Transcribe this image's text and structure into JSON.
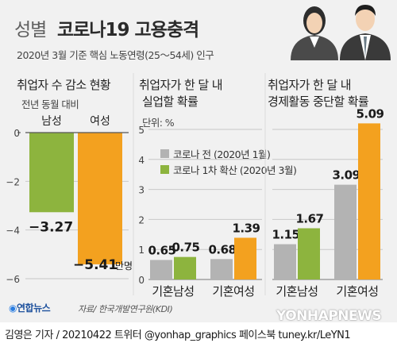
{
  "header": {
    "title_prefix": "성별",
    "title_main": "코로나19 고용충격",
    "subtitle": "2020년 3월 기준 핵심 노동연령(25～54세) 인구"
  },
  "panels": {
    "employment": {
      "title": "취업자 수 감소 현황",
      "subtitle": "전년 동월 대비"
    },
    "unemployment": {
      "title_line1": "취업자가 한 달 내",
      "title_line2": "실업할 확률",
      "unit_label": "단위: %"
    },
    "inactive": {
      "title_line1": "취업자가 한 달 내",
      "title_line2": "경제활동 중단할 확률"
    }
  },
  "legend": {
    "items": [
      {
        "label": "코로나 전 (2020년 1월)",
        "color": "#b3b3b3"
      },
      {
        "label": "코로나 1차 확산 (2020년 3월)",
        "color": "#8db43e"
      }
    ]
  },
  "colors": {
    "male_green": "#8db43e",
    "female_orange": "#f3a11f",
    "before_gray": "#b3b3b3",
    "unmarried_female_orange": "#f3a11f"
  },
  "chart_data": [
    {
      "type": "bar",
      "title": "취업자 수 감소 현황",
      "subtitle": "전년 동월 대비",
      "categories": [
        "남성",
        "여성"
      ],
      "values": [
        -3.27,
        -5.41
      ],
      "value_labels": [
        "−3.27",
        "−5.41"
      ],
      "unit_suffix": "만명",
      "ylim": [
        -6,
        0
      ],
      "yticks": [
        "0",
        "−2",
        "−4",
        "−6"
      ]
    },
    {
      "type": "bar",
      "title": "취업자가 한 달 내 실업할 확률",
      "unit": "단위: %",
      "categories": [
        "기혼남성",
        "기혼여성"
      ],
      "series": [
        {
          "name": "코로나 전 (2020년 1월)",
          "values": [
            0.65,
            0.68
          ]
        },
        {
          "name": "코로나 1차 확산 (2020년 3월)",
          "values": [
            0.75,
            1.39
          ]
        }
      ],
      "ylim": [
        0,
        5
      ],
      "yticks": [
        "0",
        "1",
        "2",
        "3",
        "4",
        "5"
      ]
    },
    {
      "type": "bar",
      "title": "취업자가 한 달 내 경제활동 중단할 확률",
      "categories": [
        "기혼남성",
        "기혼여성"
      ],
      "series": [
        {
          "name": "코로나 전 (2020년 1월)",
          "values": [
            1.15,
            3.09
          ]
        },
        {
          "name": "코로나 1차 확산 (2020년 3월)",
          "values": [
            1.67,
            5.09
          ]
        }
      ],
      "ylim": [
        0,
        5.1
      ]
    }
  ],
  "source": "자료/ 한국개발연구원(KDI)",
  "logo_text": "연합뉴스",
  "watermark": "YONHAPNEWS",
  "footer": "김영은 기자 / 20210422   트위터 @yonhap_graphics  페이스북 tuney.kr/LeYN1"
}
